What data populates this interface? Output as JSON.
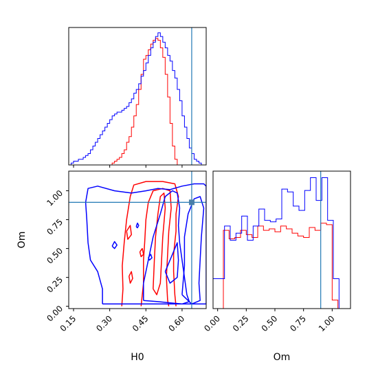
{
  "chart_data": {
    "type": "corner",
    "parameters": [
      "H0",
      "Om"
    ],
    "truth": {
      "H0": 0.64,
      "Om": 0.9
    },
    "colors": {
      "red": "#ff0000",
      "blue": "#0000ff",
      "truth": "#1f77b4",
      "frame": "#000000"
    },
    "panels": [
      {
        "id": "hist-H0",
        "type": "step-histogram",
        "xlim": [
          0.13,
          0.7
        ],
        "xticks": [
          0.15,
          0.3,
          0.45,
          0.6
        ],
        "xticklabels_shown": false,
        "bin_width": 0.01,
        "series": [
          {
            "color": "red",
            "x0": 0.3,
            "values": [
              0,
              1,
              2,
              3,
              4,
              6,
              8,
              12,
              15,
              20,
              26,
              32,
              40,
              48,
              56,
              58,
              61,
              64,
              66,
              67,
              66,
              62,
              57,
              48,
              36,
              22,
              10,
              3,
              0,
              0,
              0,
              0,
              0,
              0,
              0,
              0
            ]
          },
          {
            "color": "blue",
            "x0": 0.13,
            "values": [
              0,
              1,
              2,
              2,
              3,
              3,
              4,
              5,
              6,
              8,
              10,
              12,
              14,
              16,
              18,
              20,
              22,
              24,
              26,
              27,
              28,
              28,
              29,
              30,
              31,
              33,
              35,
              38,
              40,
              43,
              47,
              50,
              54,
              58,
              62,
              65,
              68,
              70,
              68,
              65,
              62,
              58,
              55,
              50,
              46,
              40,
              34,
              26,
              20,
              14,
              9,
              6,
              3,
              2,
              1,
              0,
              0
            ]
          }
        ]
      },
      {
        "id": "contour-H0-Om",
        "type": "contour",
        "xlabel": "H0",
        "ylabel": "Om",
        "xlim": [
          0.13,
          0.7
        ],
        "ylim": [
          -0.02,
          1.17
        ],
        "xticks": [
          "0.15",
          "0.30",
          "0.45",
          "0.60"
        ],
        "yticks": [
          "0.00",
          "0.25",
          "0.50",
          "0.75",
          "1.00"
        ],
        "series": [
          {
            "color": "red",
            "contours": [
              [
                [
                  0.35,
                  0.0
                ],
                [
                  0.355,
                  0.15
                ],
                [
                  0.352,
                  0.35
                ],
                [
                  0.36,
                  0.55
                ],
                [
                  0.37,
                  0.75
                ],
                [
                  0.385,
                  0.95
                ],
                [
                  0.4,
                  1.05
                ],
                [
                  0.45,
                  1.08
                ],
                [
                  0.52,
                  1.08
                ],
                [
                  0.57,
                  1.06
                ],
                [
                  0.585,
                  0.95
                ],
                [
                  0.575,
                  0.8
                ],
                [
                  0.575,
                  0.65
                ],
                [
                  0.565,
                  0.45
                ],
                [
                  0.565,
                  0.3
                ],
                [
                  0.57,
                  0.1
                ],
                [
                  0.575,
                  0.0
                ]
              ],
              [
                [
                  0.43,
                  0.0
                ],
                [
                  0.44,
                  0.2
                ],
                [
                  0.44,
                  0.4
                ],
                [
                  0.445,
                  0.55
                ],
                [
                  0.45,
                  0.75
                ],
                [
                  0.46,
                  0.9
                ],
                [
                  0.48,
                  1.0
                ],
                [
                  0.52,
                  1.02
                ],
                [
                  0.55,
                  1.0
                ],
                [
                  0.555,
                  0.85
                ],
                [
                  0.545,
                  0.65
                ],
                [
                  0.54,
                  0.45
                ],
                [
                  0.535,
                  0.25
                ],
                [
                  0.54,
                  0.05
                ],
                [
                  0.545,
                  0.0
                ]
              ],
              [
                [
                  0.48,
                  0.15
                ],
                [
                  0.485,
                  0.4
                ],
                [
                  0.49,
                  0.6
                ],
                [
                  0.5,
                  0.8
                ],
                [
                  0.51,
                  0.95
                ],
                [
                  0.525,
                  0.98
                ],
                [
                  0.53,
                  0.85
                ],
                [
                  0.52,
                  0.6
                ],
                [
                  0.515,
                  0.4
                ],
                [
                  0.51,
                  0.2
                ],
                [
                  0.495,
                  0.1
                ],
                [
                  0.48,
                  0.15
                ]
              ],
              [
                [
                  0.37,
                  0.65
                ],
                [
                  0.385,
                  0.7
                ],
                [
                  0.39,
                  0.62
                ],
                [
                  0.375,
                  0.58
                ],
                [
                  0.37,
                  0.65
                ]
              ],
              [
                [
                  0.38,
                  0.26
                ],
                [
                  0.39,
                  0.3
                ],
                [
                  0.395,
                  0.24
                ],
                [
                  0.385,
                  0.2
                ],
                [
                  0.38,
                  0.26
                ]
              ],
              [
                [
                  0.425,
                  0.47
                ],
                [
                  0.435,
                  0.5
                ],
                [
                  0.44,
                  0.45
                ],
                [
                  0.43,
                  0.43
                ],
                [
                  0.425,
                  0.47
                ]
              ]
            ]
          },
          {
            "color": "blue",
            "contours": [
              [
                [
                  0.27,
                  0.02
                ],
                [
                  0.27,
                  0.15
                ],
                [
                  0.25,
                  0.3
                ],
                [
                  0.22,
                  0.4
                ],
                [
                  0.21,
                  0.55
                ],
                [
                  0.205,
                  0.75
                ],
                [
                  0.2,
                  0.9
                ],
                [
                  0.21,
                  1.02
                ],
                [
                  0.25,
                  1.04
                ],
                [
                  0.32,
                  1.0
                ],
                [
                  0.39,
                  0.98
                ],
                [
                  0.45,
                  1.0
                ],
                [
                  0.5,
                  1.02
                ],
                [
                  0.55,
                  1.01
                ],
                [
                  0.6,
                  1.04
                ],
                [
                  0.65,
                  1.06
                ],
                [
                  0.69,
                  1.06
                ],
                [
                  0.7,
                  1.04
                ],
                [
                  0.7,
                  0.02
                ],
                [
                  0.27,
                  0.02
                ]
              ],
              [
                [
                  0.44,
                  0.05
                ],
                [
                  0.44,
                  0.2
                ],
                [
                  0.46,
                  0.4
                ],
                [
                  0.48,
                  0.6
                ],
                [
                  0.51,
                  0.8
                ],
                [
                  0.53,
                  0.95
                ],
                [
                  0.56,
                  1.0
                ],
                [
                  0.58,
                  0.98
                ],
                [
                  0.59,
                  0.85
                ],
                [
                  0.585,
                  0.7
                ],
                [
                  0.59,
                  0.55
                ],
                [
                  0.6,
                  0.4
                ],
                [
                  0.61,
                  0.25
                ],
                [
                  0.62,
                  0.1
                ],
                [
                  0.63,
                  0.04
                ],
                [
                  0.6,
                  0.02
                ],
                [
                  0.5,
                  0.04
                ],
                [
                  0.44,
                  0.05
                ]
              ],
              [
                [
                  0.53,
                  0.3
                ],
                [
                  0.56,
                  0.45
                ],
                [
                  0.58,
                  0.55
                ],
                [
                  0.585,
                  0.4
                ],
                [
                  0.58,
                  0.25
                ],
                [
                  0.55,
                  0.2
                ],
                [
                  0.53,
                  0.3
                ]
              ],
              [
                [
                  0.6,
                  0.1
                ],
                [
                  0.61,
                  0.35
                ],
                [
                  0.61,
                  0.6
                ],
                [
                  0.625,
                  0.8
                ],
                [
                  0.65,
                  0.93
                ],
                [
                  0.675,
                  0.95
                ],
                [
                  0.69,
                  0.85
                ],
                [
                  0.68,
                  0.6
                ],
                [
                  0.675,
                  0.4
                ],
                [
                  0.67,
                  0.2
                ],
                [
                  0.675,
                  0.05
                ],
                [
                  0.64,
                  0.02
                ],
                [
                  0.6,
                  0.1
                ]
              ],
              [
                [
                  0.31,
                  0.52
                ],
                [
                  0.32,
                  0.56
                ],
                [
                  0.33,
                  0.53
                ],
                [
                  0.32,
                  0.5
                ],
                [
                  0.31,
                  0.52
                ]
              ],
              [
                [
                  0.46,
                  0.42
                ],
                [
                  0.47,
                  0.45
                ],
                [
                  0.475,
                  0.42
                ],
                [
                  0.465,
                  0.4
                ],
                [
                  0.46,
                  0.42
                ]
              ],
              [
                [
                  0.41,
                  0.69
                ],
                [
                  0.415,
                  0.72
                ],
                [
                  0.42,
                  0.7
                ],
                [
                  0.415,
                  0.68
                ],
                [
                  0.41,
                  0.69
                ]
              ]
            ]
          }
        ]
      },
      {
        "id": "hist-Om",
        "type": "step-histogram",
        "xlabel": "Om",
        "xlim": [
          -0.04,
          1.16
        ],
        "xticks": [
          "0.00",
          "0.25",
          "0.50",
          "0.75",
          "1.00"
        ],
        "bin_width": 0.05,
        "series": [
          {
            "color": "red",
            "x0": 0.0,
            "values": [
              0,
              55,
              49,
              50,
              55,
              52,
              50,
              58,
              55,
              56,
              54,
              58,
              56,
              53,
              51,
              50,
              57,
              55,
              60,
              59,
              6
            ]
          },
          {
            "color": "blue",
            "x0": -0.04,
            "values": [
              21,
              21,
              58,
              48,
              53,
              65,
              48,
              58,
              70,
              62,
              61,
              63,
              84,
              82,
              72,
              69,
              83,
              92,
              76,
              92,
              62,
              21,
              0
            ]
          }
        ]
      }
    ]
  }
}
